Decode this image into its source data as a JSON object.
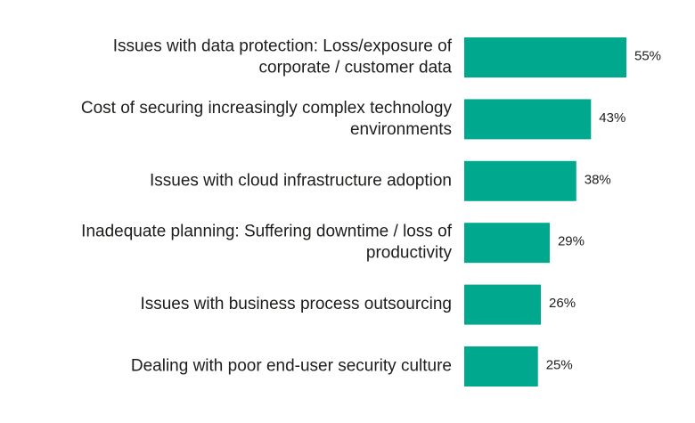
{
  "chart_data": {
    "type": "bar",
    "orientation": "horizontal",
    "title": "",
    "xlabel": "",
    "ylabel": "",
    "xlim": [
      0,
      100
    ],
    "grid": false,
    "legend": "none",
    "bar_color": "#00a88e",
    "categories": [
      [
        "Issues with data protection: Loss/exposure of",
        "corporate / customer data"
      ],
      [
        "Cost of securing increasingly complex technology",
        "environments"
      ],
      [
        "Issues with cloud infrastructure adoption"
      ],
      [
        "Inadequate planning: Suffering downtime / loss of",
        "productivity"
      ],
      [
        "Issues with business process outsourcing"
      ],
      [
        "Dealing with poor end-user security culture"
      ]
    ],
    "values": [
      55,
      43,
      38,
      29,
      26,
      25
    ],
    "value_labels": [
      "55%",
      "43%",
      "38%",
      "29%",
      "26%",
      "25%"
    ]
  }
}
